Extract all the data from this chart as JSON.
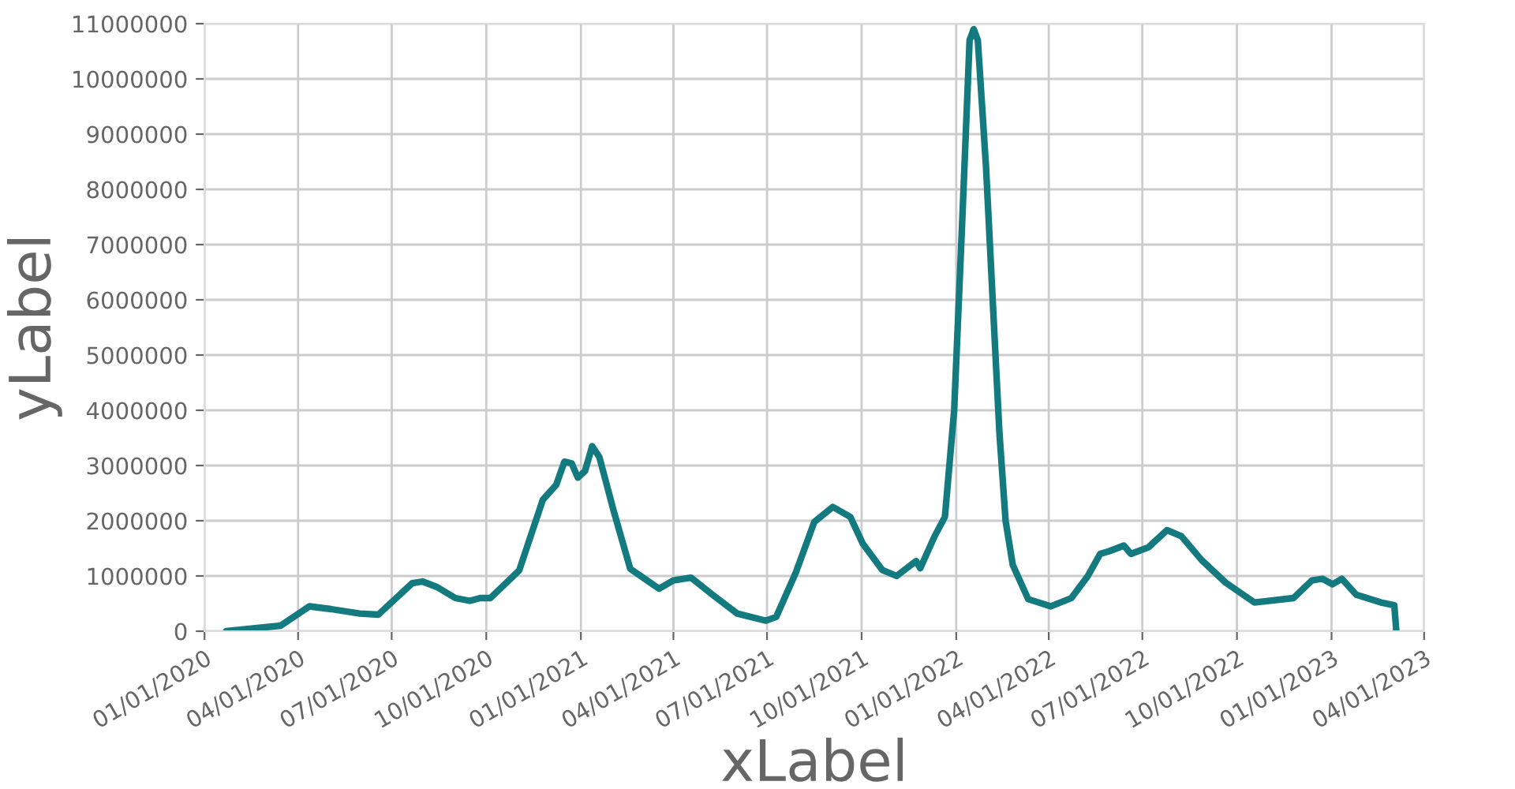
{
  "chart_data": {
    "type": "line",
    "xlabel": "xLabel",
    "ylabel": "yLabel",
    "x": [
      "2020-01-22",
      "2020-03-15",
      "2020-04-12",
      "2020-05-03",
      "2020-05-31",
      "2020-06-18",
      "2020-07-21",
      "2020-07-31",
      "2020-08-14",
      "2020-09-01",
      "2020-09-15",
      "2020-09-25",
      "2020-10-05",
      "2020-11-02",
      "2020-11-25",
      "2020-12-08",
      "2020-12-16",
      "2020-12-23",
      "2020-12-29",
      "2021-01-05",
      "2021-01-12",
      "2021-01-19",
      "2021-02-02",
      "2021-02-18",
      "2021-03-04",
      "2021-03-18",
      "2021-04-01",
      "2021-04-18",
      "2021-05-09",
      "2021-06-02",
      "2021-06-30",
      "2021-07-10",
      "2021-07-29",
      "2021-08-16",
      "2021-09-03",
      "2021-09-20",
      "2021-10-02",
      "2021-10-21",
      "2021-11-04",
      "2021-11-23",
      "2021-11-27",
      "2021-12-11",
      "2021-12-21",
      "2021-12-30",
      "2022-01-07",
      "2022-01-14",
      "2022-01-18",
      "2022-01-22",
      "2022-01-30",
      "2022-02-06",
      "2022-02-12",
      "2022-02-18",
      "2022-02-25",
      "2022-03-12",
      "2022-04-03",
      "2022-04-23",
      "2022-05-09",
      "2022-05-21",
      "2022-05-30",
      "2022-06-13",
      "2022-06-20",
      "2022-07-07",
      "2022-07-25",
      "2022-08-08",
      "2022-08-28",
      "2022-09-20",
      "2022-10-18",
      "2022-11-25",
      "2022-12-13",
      "2022-12-23",
      "2023-01-02",
      "2023-01-11",
      "2023-01-25",
      "2023-02-18",
      "2023-03-03",
      "2023-03-05"
    ],
    "series": [
      {
        "color": "#137a7f",
        "values": [
          0,
          100000,
          450000,
          400000,
          320000,
          300000,
          870000,
          900000,
          800000,
          600000,
          550000,
          600000,
          600000,
          1100000,
          2380000,
          2650000,
          3070000,
          3040000,
          2780000,
          2900000,
          3350000,
          3150000,
          2170000,
          1130000,
          950000,
          770000,
          920000,
          970000,
          660000,
          320000,
          190000,
          260000,
          1060000,
          1980000,
          2250000,
          2070000,
          1590000,
          1110000,
          1000000,
          1270000,
          1140000,
          1720000,
          2070000,
          4000000,
          7500000,
          10700000,
          10900000,
          10700000,
          8400000,
          5800000,
          3600000,
          2000000,
          1200000,
          580000,
          450000,
          600000,
          1000000,
          1400000,
          1450000,
          1550000,
          1400000,
          1520000,
          1830000,
          1720000,
          1280000,
          880000,
          520000,
          600000,
          920000,
          950000,
          850000,
          950000,
          660000,
          520000,
          470000,
          0
        ]
      }
    ],
    "xlim": [
      "2020-01-01",
      "2023-04-01"
    ],
    "xticks": [
      {
        "value": "2020-01-01",
        "label": "01/01/2020"
      },
      {
        "value": "2020-04-01",
        "label": "04/01/2020"
      },
      {
        "value": "2020-07-01",
        "label": "07/01/2020"
      },
      {
        "value": "2020-10-01",
        "label": "10/01/2020"
      },
      {
        "value": "2021-01-01",
        "label": "01/01/2021"
      },
      {
        "value": "2021-04-01",
        "label": "04/01/2021"
      },
      {
        "value": "2021-07-01",
        "label": "07/01/2021"
      },
      {
        "value": "2021-10-01",
        "label": "10/01/2021"
      },
      {
        "value": "2022-01-01",
        "label": "01/01/2022"
      },
      {
        "value": "2022-04-01",
        "label": "04/01/2022"
      },
      {
        "value": "2022-07-01",
        "label": "07/01/2022"
      },
      {
        "value": "2022-10-01",
        "label": "10/01/2022"
      },
      {
        "value": "2023-01-01",
        "label": "01/01/2023"
      },
      {
        "value": "2023-04-01",
        "label": "04/01/2023"
      }
    ],
    "ylim": [
      0,
      11000000
    ],
    "yticks": [
      0,
      1000000,
      2000000,
      3000000,
      4000000,
      5000000,
      6000000,
      7000000,
      8000000,
      9000000,
      10000000,
      11000000
    ],
    "grid": true,
    "marker": "none",
    "line_style": "solid"
  }
}
